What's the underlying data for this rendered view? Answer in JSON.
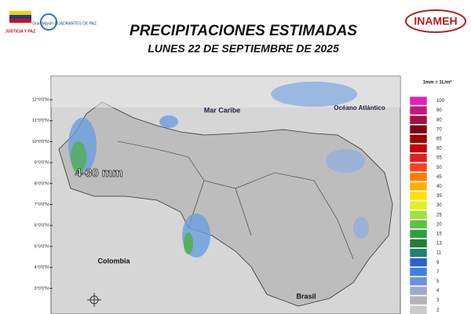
{
  "header": {
    "title": "PRECIPITACIONES ESTIMADAS",
    "subtitle": "LUNES 22 DE SEPTIEMBRE DE 2025",
    "left_logo_text": "JUSTICIA Y PAZ",
    "center_logo_text": "Gran Misión CUADRANTES DE PAZ",
    "right_logo_text": "INAMEH"
  },
  "map": {
    "labels": {
      "sea": "Mar Caribe",
      "ocean": "Océano Atlántico",
      "west": "Colombia",
      "south": "Brasil",
      "range": "4-30 mm"
    },
    "latitudes": [
      "12°0'0\"N",
      "11°0'0\"N",
      "10°0'0\"N",
      "9°0'0\"N",
      "8°0'0\"N",
      "7°0'0\"N",
      "6°0'0\"N",
      "5°0'0\"N",
      "4°0'0\"N",
      "3°0'0\"N"
    ]
  },
  "legend": {
    "unit": "1mm = 1L/m²",
    "levels": [
      100,
      90,
      80,
      70,
      65,
      60,
      55,
      50,
      45,
      40,
      35,
      30,
      25,
      20,
      15,
      13,
      11,
      9,
      7,
      5,
      4,
      3,
      2
    ],
    "colors": [
      "#e020c0",
      "#c01880",
      "#a01040",
      "#800010",
      "#a00000",
      "#c00000",
      "#e02020",
      "#ff4020",
      "#ff7a00",
      "#ffb000",
      "#ffe000",
      "#e0f020",
      "#a0e040",
      "#60c040",
      "#30a040",
      "#208030",
      "#208070",
      "#3060d0",
      "#4080e0",
      "#7090e0",
      "#a0a8c8",
      "#b4b4b4",
      "#cacaca"
    ]
  }
}
